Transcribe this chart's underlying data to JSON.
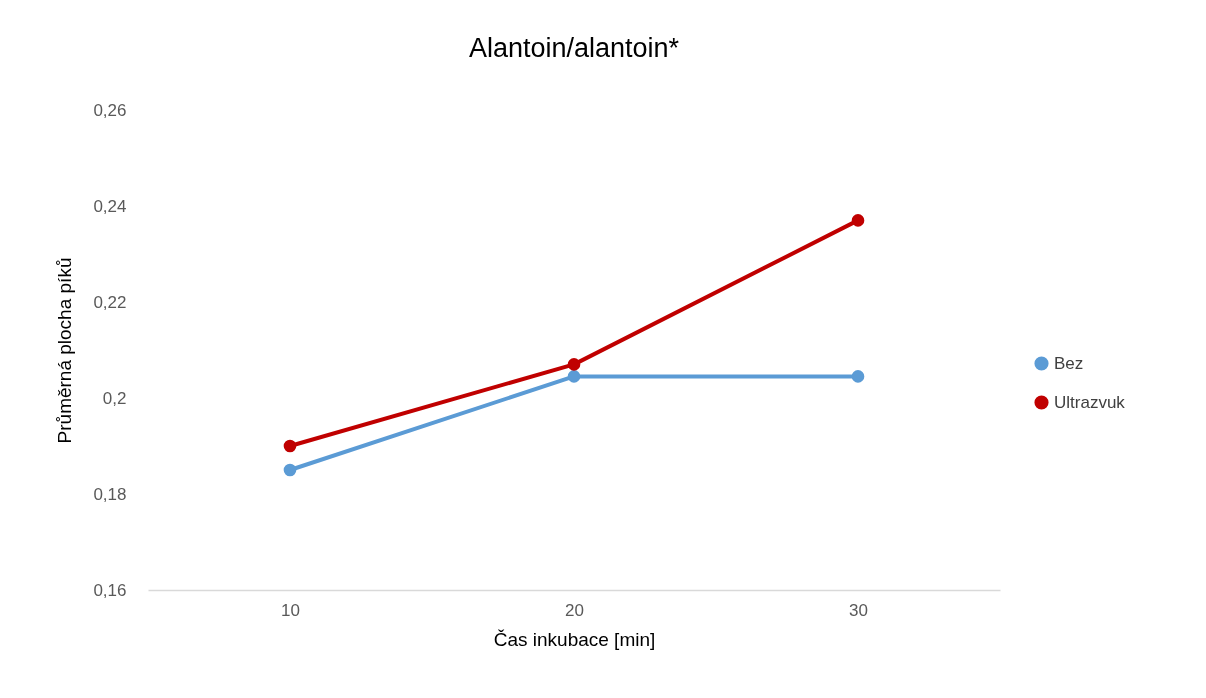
{
  "chart_data": {
    "type": "line",
    "title": "Alantoin/alantoin*",
    "xlabel": "Čas inkubace [min]",
    "ylabel": "Průměrná plocha píků",
    "categories": [
      "10",
      "20",
      "30"
    ],
    "series": [
      {
        "name": "Bez",
        "color": "#5b9bd5",
        "values": [
          0.185,
          0.2045,
          0.2045
        ]
      },
      {
        "name": "Ultrazvuk",
        "color": "#c00000",
        "values": [
          0.19,
          0.207,
          0.237
        ]
      }
    ],
    "ylim": [
      0.16,
      0.26
    ],
    "yticks": [
      {
        "value": 0.16,
        "label": "0,16"
      },
      {
        "value": 0.18,
        "label": "0,18"
      },
      {
        "value": 0.2,
        "label": "0,2"
      },
      {
        "value": 0.22,
        "label": "0,22"
      },
      {
        "value": 0.24,
        "label": "0,24"
      },
      {
        "value": 0.26,
        "label": "0,26"
      }
    ],
    "grid": false,
    "legend": "right",
    "marker": "circle",
    "line_style": "solid"
  }
}
